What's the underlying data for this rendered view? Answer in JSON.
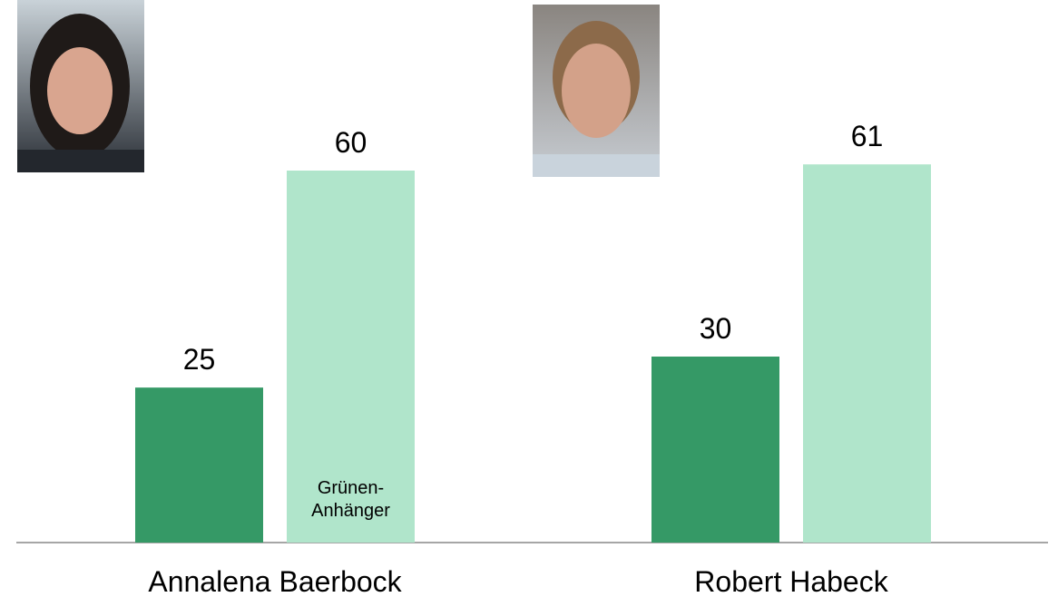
{
  "chart_data": {
    "type": "bar",
    "categories": [
      "Annalena Baerbock",
      "Robert Habeck"
    ],
    "series": [
      {
        "color": "#359966",
        "values": [
          25,
          30
        ]
      },
      {
        "name": "Grünen-Anhänger",
        "color": "#b0e5cb",
        "values": [
          60,
          61
        ]
      }
    ],
    "grid": false
  }
}
